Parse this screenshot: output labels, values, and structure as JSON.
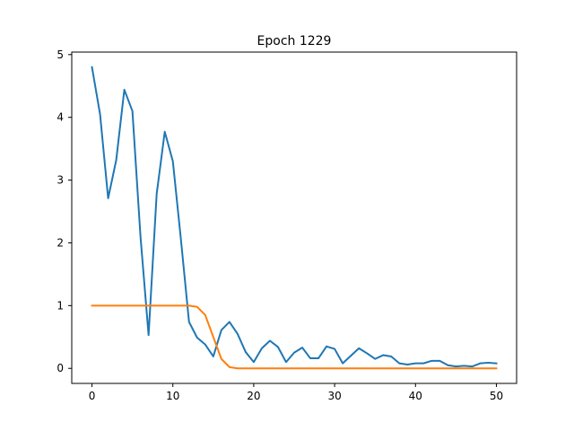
{
  "chart_data": {
    "type": "line",
    "title": "Epoch 1229",
    "xlabel": "",
    "ylabel": "",
    "xlim": [
      -2.5,
      52.5
    ],
    "ylim": [
      -0.24,
      5.04
    ],
    "xticks": [
      0,
      10,
      20,
      30,
      40,
      50
    ],
    "yticks": [
      0,
      1,
      2,
      3,
      4,
      5
    ],
    "grid": false,
    "legend": "none",
    "series": [
      {
        "color": "#1f77b4",
        "x": [
          0,
          1,
          2,
          3,
          4,
          5,
          6,
          7,
          8,
          9,
          10,
          11,
          12,
          13,
          14,
          15,
          16,
          17,
          18,
          19,
          20,
          21,
          22,
          23,
          24,
          25,
          26,
          27,
          28,
          29,
          30,
          31,
          32,
          33,
          34,
          35,
          36,
          37,
          38,
          39,
          40,
          41,
          42,
          43,
          44,
          45,
          46,
          47,
          48,
          49,
          50
        ],
        "y": [
          4.8,
          4.05,
          2.71,
          3.32,
          4.44,
          4.1,
          2.1,
          0.53,
          2.78,
          3.77,
          3.3,
          2.05,
          0.74,
          0.49,
          0.38,
          0.19,
          0.61,
          0.74,
          0.55,
          0.26,
          0.1,
          0.32,
          0.44,
          0.34,
          0.1,
          0.25,
          0.33,
          0.16,
          0.16,
          0.35,
          0.31,
          0.08,
          0.2,
          0.32,
          0.24,
          0.15,
          0.21,
          0.19,
          0.08,
          0.06,
          0.08,
          0.08,
          0.12,
          0.12,
          0.05,
          0.03,
          0.04,
          0.03,
          0.08,
          0.09,
          0.08
        ]
      },
      {
        "color": "#ff7f0e",
        "x": [
          0,
          1,
          2,
          3,
          4,
          5,
          6,
          7,
          8,
          9,
          10,
          11,
          12,
          13,
          14,
          15,
          16,
          17,
          18,
          19,
          20,
          21,
          22,
          23,
          24,
          25,
          26,
          27,
          28,
          29,
          30,
          31,
          32,
          33,
          34,
          35,
          36,
          37,
          38,
          39,
          40,
          41,
          42,
          43,
          44,
          45,
          46,
          47,
          48,
          49,
          50
        ],
        "y": [
          1,
          1,
          1,
          1,
          1,
          1,
          1,
          1,
          1,
          1,
          1,
          1,
          1,
          0.98,
          0.85,
          0.5,
          0.15,
          0.02,
          0,
          0,
          0,
          0,
          0,
          0,
          0,
          0,
          0,
          0,
          0,
          0,
          0,
          0,
          0,
          0,
          0,
          0,
          0,
          0,
          0,
          0,
          0,
          0,
          0,
          0,
          0,
          0,
          0,
          0,
          0,
          0,
          0
        ]
      }
    ]
  }
}
